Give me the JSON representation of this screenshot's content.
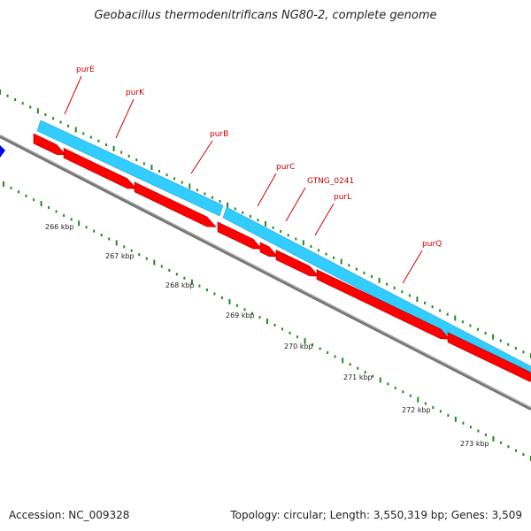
{
  "title": "Geobacillus thermodenitrificans NG80-2, complete genome",
  "footer": {
    "accession": "Accession: NC_009328",
    "topology": "Topology: circular; Length: 3,550,319 bp; Genes: 3,509"
  },
  "colors": {
    "forward_strand": "#33ccff",
    "reverse_strand": "#ff0000",
    "backbone": "#888888",
    "ticks": "#228822",
    "labels": "#cc0000",
    "edge_feature": "#0000ff"
  },
  "genes": [
    {
      "name": "purE",
      "strand": "reverse"
    },
    {
      "name": "purK",
      "strand": "reverse"
    },
    {
      "name": "purB",
      "strand": "reverse"
    },
    {
      "name": "purC",
      "strand": "reverse"
    },
    {
      "name": "GTNG_0241",
      "strand": "reverse"
    },
    {
      "name": "purL",
      "strand": "reverse"
    },
    {
      "name": "purQ",
      "strand": "reverse"
    }
  ],
  "ruler": [
    "266 kbp",
    "267 kbp",
    "268 kbp",
    "269 kbp",
    "270 kbp",
    "271 kbp",
    "272 kbp",
    "273 kbp"
  ]
}
